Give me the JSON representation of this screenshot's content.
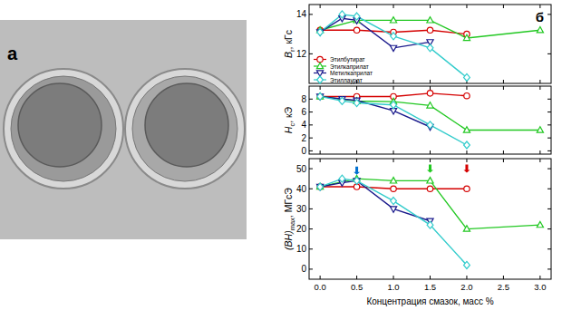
{
  "photo": {
    "label": "а"
  },
  "figure": {
    "label": "б"
  },
  "chart_data": [
    {
      "type": "line",
      "ylabel": {
        "main": "B",
        "sub": "r",
        "rest": ", кГс"
      },
      "xlim": [
        -0.15,
        3.15
      ],
      "xticks": [
        0,
        0.5,
        1,
        1.5,
        2,
        2.5,
        3
      ],
      "ylim": [
        10.5,
        14.5
      ],
      "yticks": [
        12,
        14
      ],
      "tick_labels": "y",
      "legend": "lower left",
      "series": [
        {
          "name": "Этилбутират",
          "color": "#d40000",
          "marker": "circle",
          "x": [
            0,
            0.5,
            1,
            1.5,
            2
          ],
          "values": [
            13.2,
            13.2,
            13.1,
            13.2,
            13.0
          ]
        },
        {
          "name": "Этилкаприлат",
          "color": "#22c822",
          "marker": "triangle-up",
          "x": [
            0,
            0.5,
            1,
            1.5,
            2,
            3
          ],
          "values": [
            13.2,
            13.7,
            13.7,
            13.7,
            12.8,
            13.2
          ]
        },
        {
          "name": "Метилкаприлат",
          "color": "#1a1a8c",
          "marker": "triangle-down",
          "x": [
            0,
            0.3,
            0.5,
            1,
            1.5
          ],
          "values": [
            13.1,
            13.8,
            13.7,
            12.3,
            12.6
          ]
        },
        {
          "name": "Этиллаурат",
          "color": "#33cccc",
          "marker": "diamond",
          "x": [
            0,
            0.3,
            0.5,
            1,
            1.5,
            2
          ],
          "values": [
            13.1,
            14.0,
            13.9,
            12.9,
            12.3,
            10.8
          ]
        }
      ]
    },
    {
      "type": "line",
      "ylabel": {
        "main": "H",
        "sub": "c",
        "rest": ", кЭ"
      },
      "xlim": [
        -0.15,
        3.15
      ],
      "xticks": [
        0,
        0.5,
        1,
        1.5,
        2,
        2.5,
        3
      ],
      "ylim": [
        -0.5,
        10
      ],
      "yticks": [
        0,
        2,
        4,
        6,
        8
      ],
      "tick_labels": "y",
      "series": [
        {
          "name": "Этилбутират",
          "color": "#d40000",
          "marker": "circle",
          "x": [
            0,
            0.5,
            1,
            1.5,
            2
          ],
          "values": [
            8.4,
            8.4,
            8.4,
            8.9,
            8.5
          ]
        },
        {
          "name": "Этилкаприлат",
          "color": "#22c822",
          "marker": "triangle-up",
          "x": [
            0,
            0.5,
            1,
            1.5,
            2,
            3
          ],
          "values": [
            8.4,
            7.7,
            7.6,
            7.0,
            3.2,
            3.2
          ]
        },
        {
          "name": "Метилкаприлат",
          "color": "#1a1a8c",
          "marker": "triangle-down",
          "x": [
            0,
            0.3,
            0.5,
            1,
            1.5
          ],
          "values": [
            8.4,
            8.0,
            7.8,
            6.2,
            3.7
          ]
        },
        {
          "name": "Этиллаурат",
          "color": "#33cccc",
          "marker": "diamond",
          "x": [
            0,
            0.3,
            0.5,
            1,
            1.5,
            2
          ],
          "values": [
            8.4,
            7.7,
            7.4,
            7.1,
            4.0,
            0.9
          ]
        }
      ]
    },
    {
      "type": "line",
      "ylabel": {
        "main": "(BH)",
        "sub": "max",
        "rest": ", МГсЭ"
      },
      "xlabel": "Концентрация смазок, масс %",
      "xlim": [
        -0.15,
        3.15
      ],
      "xticks": [
        {
          "value": 0,
          "label": "0.0"
        },
        0.5,
        {
          "value": 1,
          "label": "1.0"
        },
        1.5,
        {
          "value": 2,
          "label": "2.0"
        },
        2.5,
        {
          "value": 3,
          "label": "3.0"
        }
      ],
      "ylim": [
        -5,
        55
      ],
      "yticks": [
        0,
        10,
        20,
        30,
        40,
        50
      ],
      "arrows": [
        {
          "x": 0.5,
          "y": 47,
          "color": "#0070d0"
        },
        {
          "x": 1.5,
          "y": 48,
          "color": "#22c822"
        },
        {
          "x": 2,
          "y": 48,
          "color": "#d40000"
        }
      ],
      "series": [
        {
          "name": "Этилбутират",
          "color": "#d40000",
          "marker": "circle",
          "x": [
            0,
            0.5,
            1,
            1.5,
            2
          ],
          "values": [
            41,
            41,
            40,
            40,
            40
          ]
        },
        {
          "name": "Этилкаприлат",
          "color": "#22c822",
          "marker": "triangle-up",
          "x": [
            0,
            0.5,
            1,
            1.5,
            2,
            3
          ],
          "values": [
            41,
            45,
            44,
            44,
            20,
            22
          ]
        },
        {
          "name": "Метилкаприлат",
          "color": "#1a1a8c",
          "marker": "triangle-down",
          "x": [
            0,
            0.3,
            0.5,
            1,
            1.5
          ],
          "values": [
            41,
            43,
            44,
            30,
            24
          ]
        },
        {
          "name": "Этиллаурат",
          "color": "#33cccc",
          "marker": "diamond",
          "x": [
            0,
            0.3,
            0.5,
            1,
            1.5,
            2
          ],
          "values": [
            41,
            45,
            44,
            34,
            22,
            2
          ]
        }
      ]
    }
  ]
}
